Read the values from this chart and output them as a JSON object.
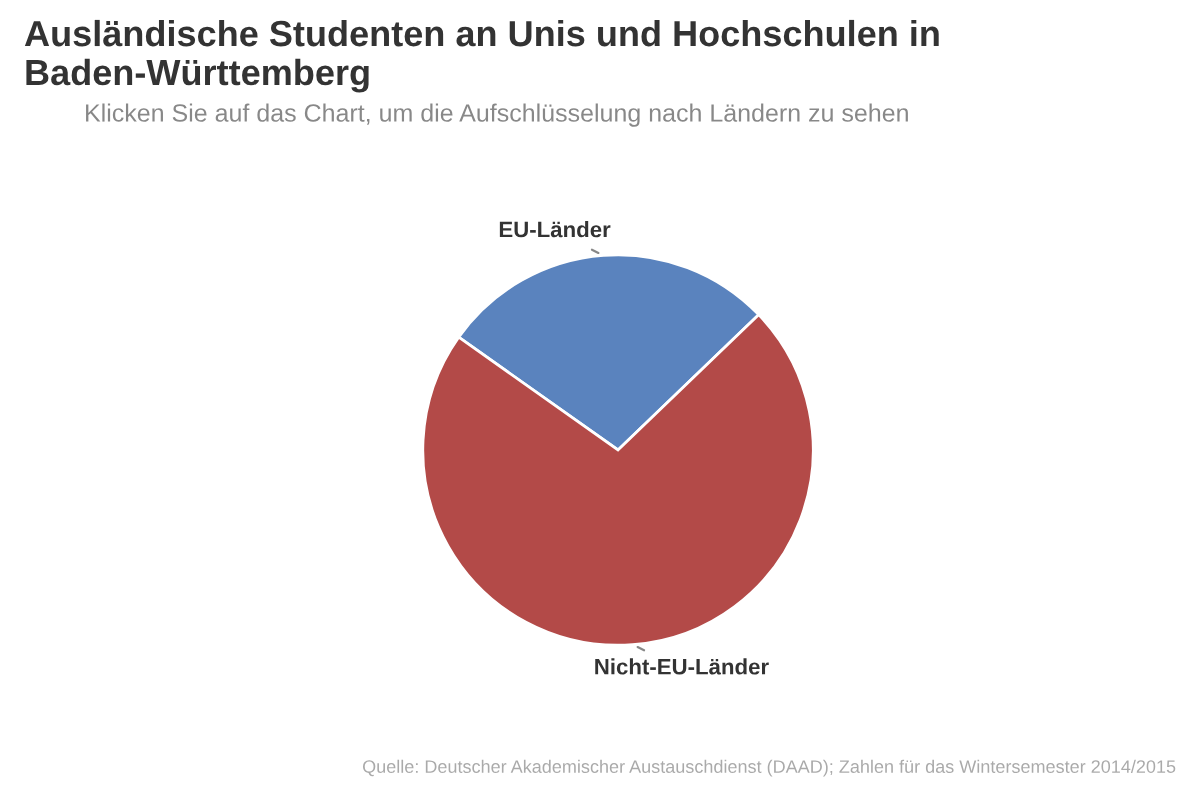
{
  "chart_data": {
    "type": "pie",
    "title": "Ausländische Studenten an Unis und Hochschulen in Baden-Württemberg",
    "subtitle": "Klicken Sie auf das Chart, um die Aufschlüsselung nach Ländern zu sehen",
    "categories": [
      "EU-Länder",
      "Nicht-EU-Länder"
    ],
    "values": [
      28,
      72
    ],
    "colors": [
      "#5a83be",
      "#b34a48"
    ],
    "annotations": [
      "Quelle: Deutscher Akademischer Austauschdienst (DAAD); Zahlen für das Wintersemester 2014/2015"
    ]
  }
}
